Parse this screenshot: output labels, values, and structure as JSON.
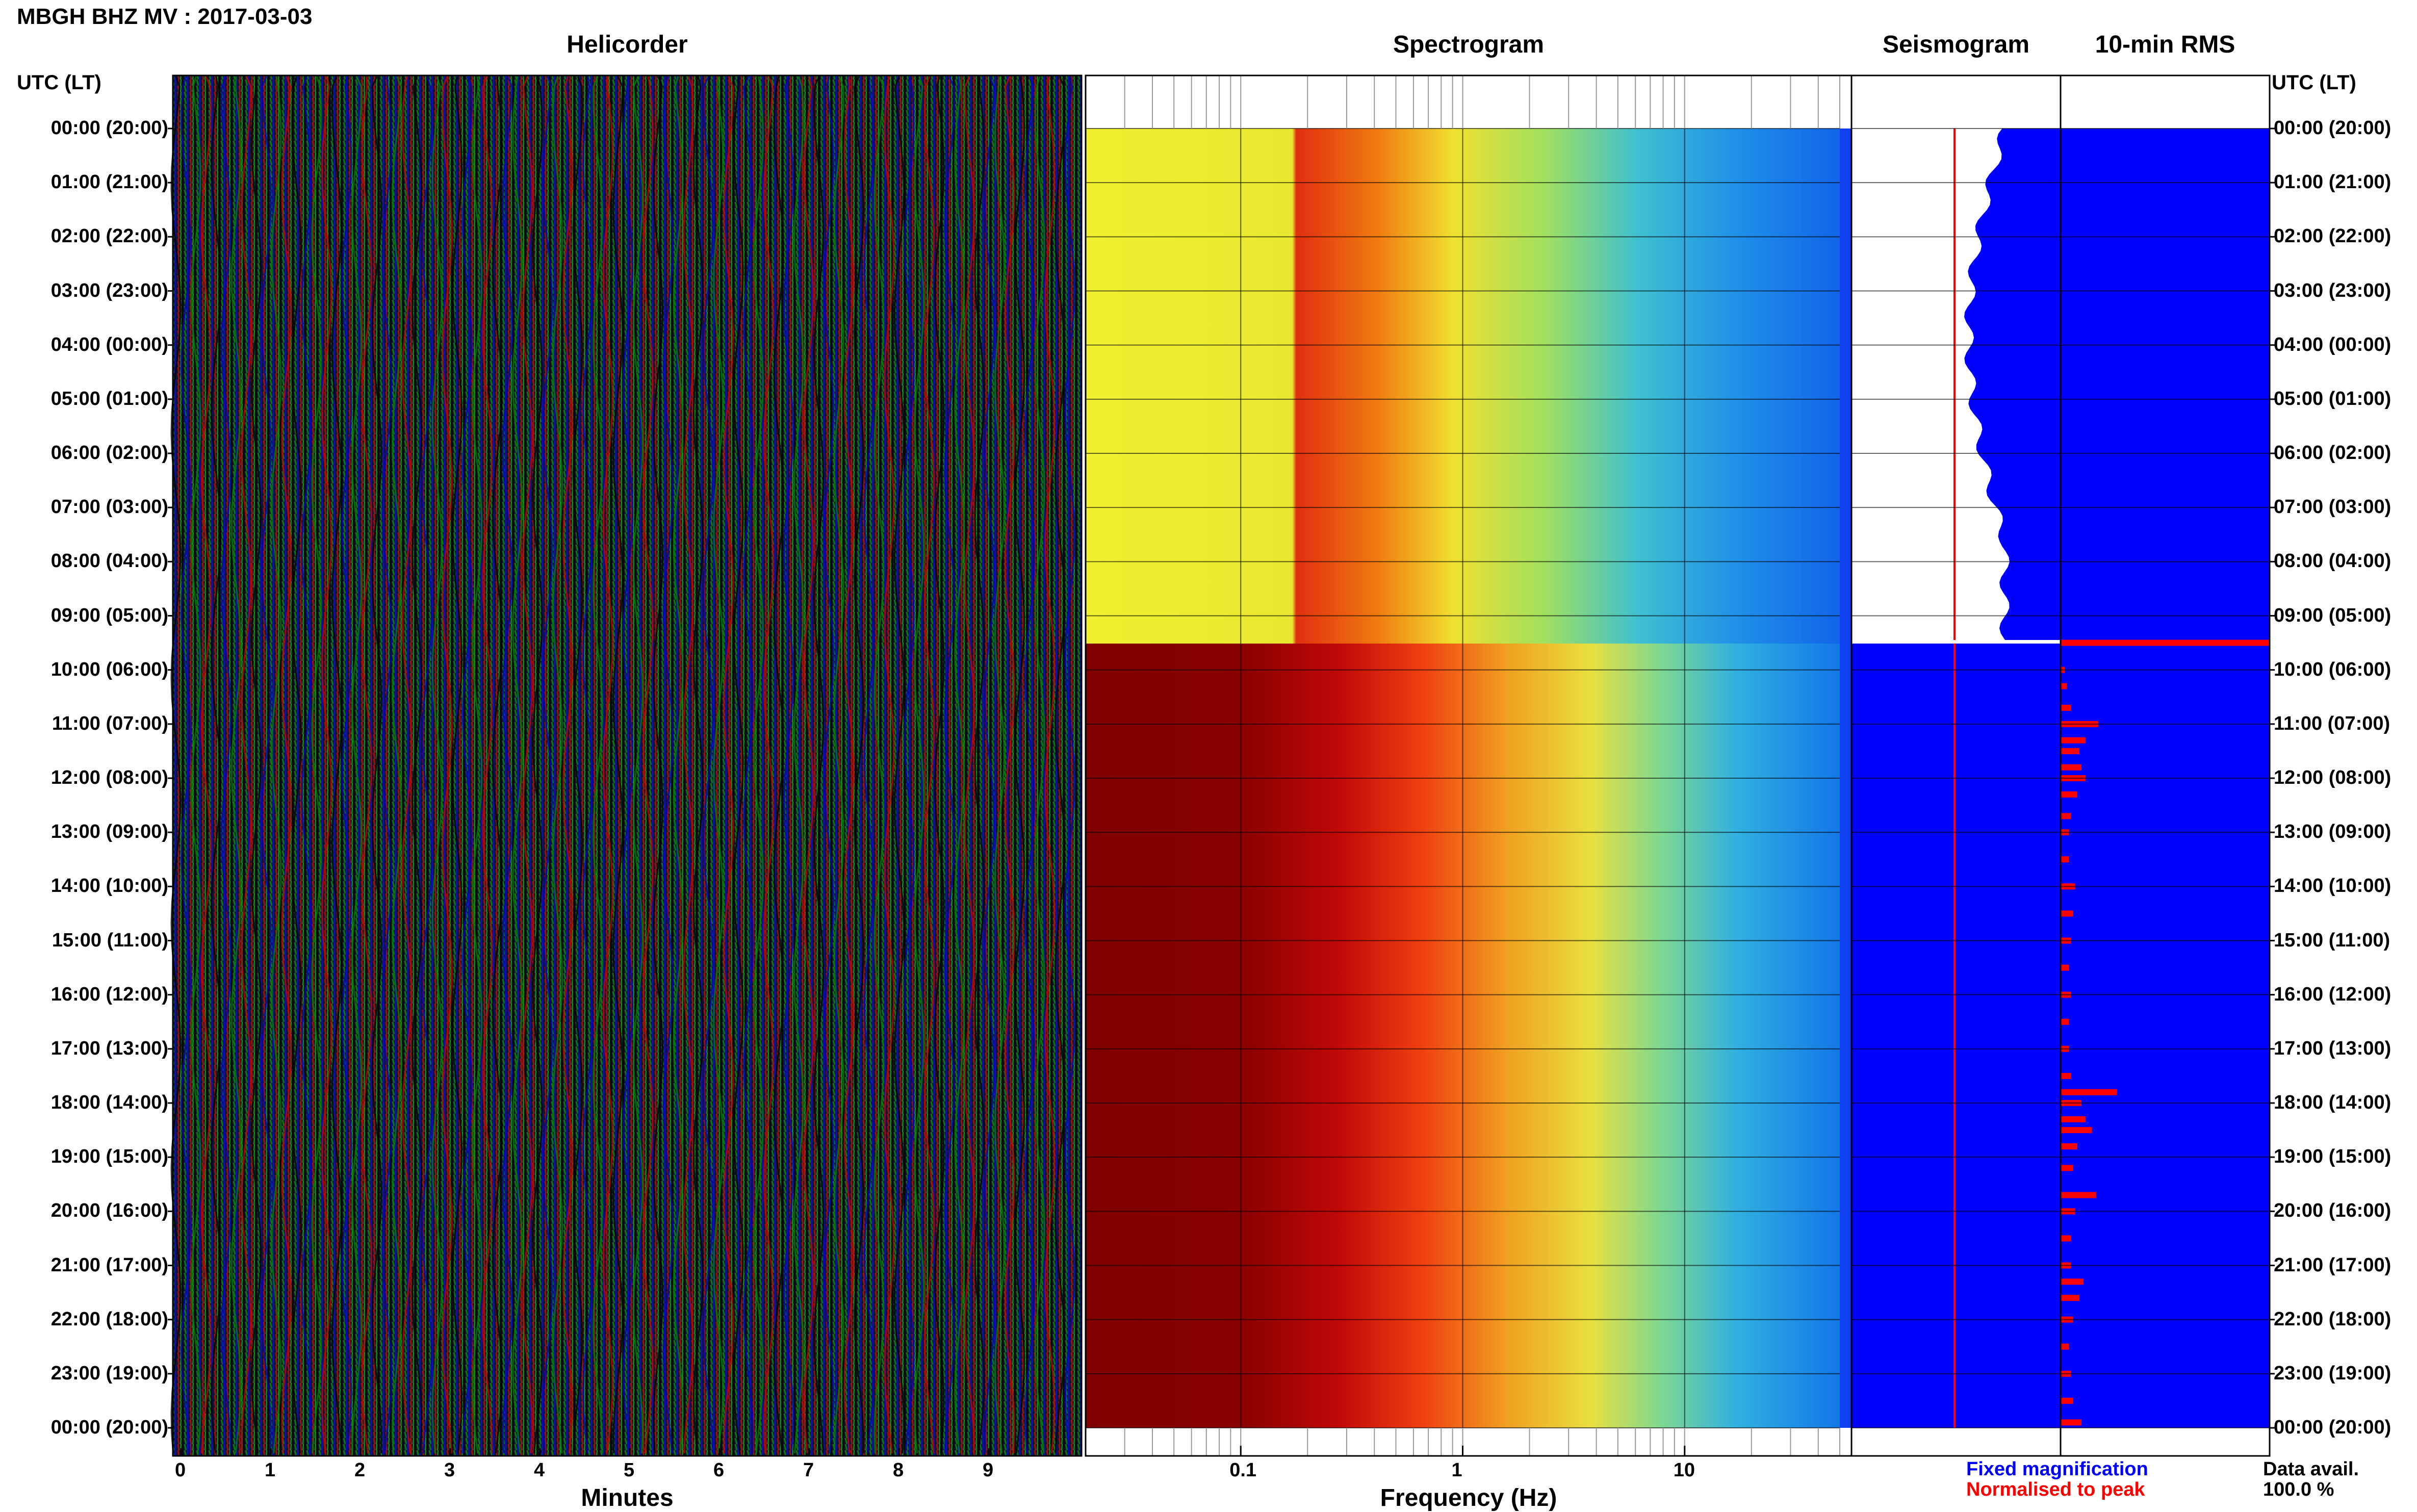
{
  "header": {
    "title": "MBGH BHZ MV : 2017-03-03",
    "utc_left": "UTC (LT)",
    "utc_right": "UTC (LT)"
  },
  "panels": {
    "helicorder": "Helicorder",
    "spectrogram": "Spectrogram",
    "seismogram": "Seismogram",
    "rms": "10-min RMS"
  },
  "axes": {
    "helicorder_xlabel": "Minutes",
    "spectrogram_xlabel": "Frequency (Hz)"
  },
  "legend": {
    "fixed": "Fixed magnification",
    "normalised": "Normalised to peak",
    "fixed_color": "#0000ff",
    "normalised_color": "#ff0000"
  },
  "data_avail": {
    "label": "Data avail.",
    "value": "100.0 %"
  },
  "chart_data": {
    "type": "heatmap",
    "time_labels": [
      "00:00 (20:00)",
      "01:00 (21:00)",
      "02:00 (22:00)",
      "03:00 (23:00)",
      "04:00 (00:00)",
      "05:00 (01:00)",
      "06:00 (02:00)",
      "07:00 (03:00)",
      "08:00 (04:00)",
      "09:00 (05:00)",
      "10:00 (06:00)",
      "11:00 (07:00)",
      "12:00 (08:00)",
      "13:00 (09:00)",
      "14:00 (10:00)",
      "15:00 (11:00)",
      "16:00 (12:00)",
      "17:00 (13:00)",
      "18:00 (14:00)",
      "19:00 (15:00)",
      "20:00 (16:00)",
      "21:00 (17:00)",
      "22:00 (18:00)",
      "23:00 (19:00)",
      "00:00 (20:00)"
    ],
    "helicorder_x_ticks": [
      "0",
      "1",
      "2",
      "3",
      "4",
      "5",
      "6",
      "7",
      "8",
      "9"
    ],
    "helicorder_trace_colors": [
      "#000000",
      "#0000cc",
      "#008000",
      "#cc0000"
    ],
    "spectrogram_x_ticks": [
      "0.1",
      "1",
      "10"
    ],
    "spectrogram_xlim": [
      0.02,
      50
    ],
    "spectrogram_xscale": "log",
    "gain_change_hour": 9.55,
    "rms_bars": [
      {
        "hour": 9.5,
        "value": 1.0
      },
      {
        "hour": 10.0,
        "value": 0.02
      },
      {
        "hour": 10.3,
        "value": 0.03
      },
      {
        "hour": 10.7,
        "value": 0.05
      },
      {
        "hour": 11.0,
        "value": 0.18
      },
      {
        "hour": 11.3,
        "value": 0.12
      },
      {
        "hour": 11.5,
        "value": 0.09
      },
      {
        "hour": 11.8,
        "value": 0.1
      },
      {
        "hour": 12.0,
        "value": 0.12
      },
      {
        "hour": 12.3,
        "value": 0.08
      },
      {
        "hour": 12.7,
        "value": 0.05
      },
      {
        "hour": 13.0,
        "value": 0.04
      },
      {
        "hour": 13.5,
        "value": 0.04
      },
      {
        "hour": 14.0,
        "value": 0.07
      },
      {
        "hour": 14.5,
        "value": 0.06
      },
      {
        "hour": 15.0,
        "value": 0.05
      },
      {
        "hour": 15.5,
        "value": 0.04
      },
      {
        "hour": 16.0,
        "value": 0.05
      },
      {
        "hour": 16.5,
        "value": 0.04
      },
      {
        "hour": 17.0,
        "value": 0.04
      },
      {
        "hour": 17.5,
        "value": 0.05
      },
      {
        "hour": 17.8,
        "value": 0.27
      },
      {
        "hour": 18.0,
        "value": 0.1
      },
      {
        "hour": 18.3,
        "value": 0.12
      },
      {
        "hour": 18.5,
        "value": 0.15
      },
      {
        "hour": 18.8,
        "value": 0.08
      },
      {
        "hour": 19.2,
        "value": 0.06
      },
      {
        "hour": 19.7,
        "value": 0.17
      },
      {
        "hour": 20.0,
        "value": 0.07
      },
      {
        "hour": 20.5,
        "value": 0.05
      },
      {
        "hour": 21.0,
        "value": 0.05
      },
      {
        "hour": 21.3,
        "value": 0.11
      },
      {
        "hour": 21.6,
        "value": 0.09
      },
      {
        "hour": 22.0,
        "value": 0.06
      },
      {
        "hour": 22.5,
        "value": 0.04
      },
      {
        "hour": 23.0,
        "value": 0.05
      },
      {
        "hour": 23.5,
        "value": 0.06
      },
      {
        "hour": 23.9,
        "value": 0.1
      }
    ]
  }
}
